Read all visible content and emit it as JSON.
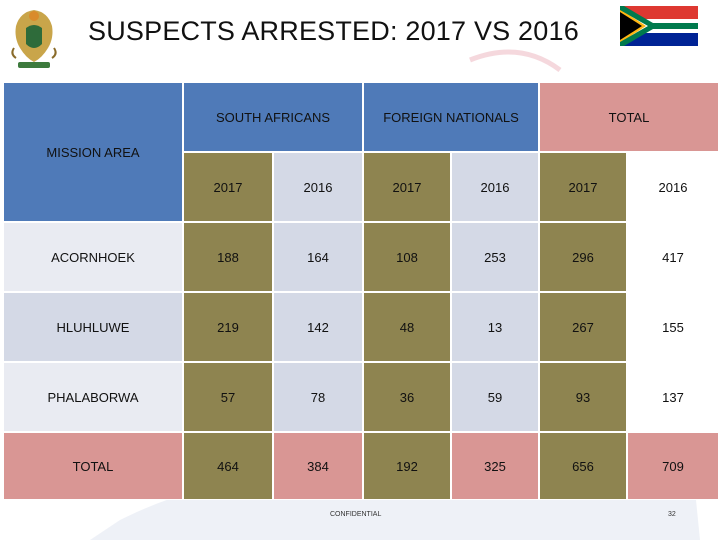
{
  "slide": {
    "title": "SUSPECTS ARRESTED: 2017 VS 2016",
    "confidential": "CONFIDENTIAL",
    "page_number": "32"
  },
  "table": {
    "corner_label": "MISSION AREA",
    "groups": [
      "SOUTH AFRICANS",
      "FOREIGN NATIONALS",
      "TOTAL"
    ],
    "years": [
      "2017",
      "2016",
      "2017",
      "2016",
      "2017",
      "2016"
    ],
    "rows": [
      {
        "area": "ACORNHOEK",
        "values": [
          "188",
          "164",
          "108",
          "253",
          "296",
          "417"
        ]
      },
      {
        "area": "HLUHLUWE",
        "values": [
          "219",
          "142",
          "48",
          "13",
          "267",
          "155"
        ]
      },
      {
        "area": "PHALABORWA",
        "values": [
          "57",
          "78",
          "36",
          "59",
          "93",
          "137"
        ]
      },
      {
        "area": "TOTAL",
        "values": [
          "464",
          "384",
          "192",
          "325",
          "656",
          "709"
        ]
      }
    ]
  },
  "colors": {
    "header_blue": "#4f7ab8",
    "total_pink": "#d99694",
    "olive": "#8e8450",
    "lavender": "#d4d9e6",
    "pale": "#e9ebf2"
  }
}
